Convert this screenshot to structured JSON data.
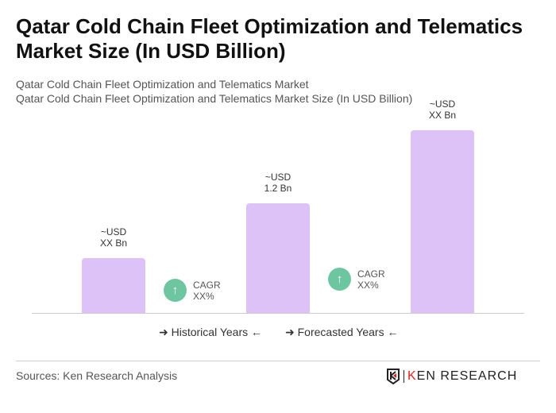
{
  "title": "Qatar Cold Chain Fleet Optimization and Telematics Market Size (In USD Billion)",
  "subtitle1": "Qatar Cold Chain Fleet Optimization and Telematics Market",
  "subtitle2": "Qatar Cold Chain Fleet Optimization and Telematics Market Size (In USD Billion)",
  "chart_data": {
    "type": "bar",
    "categories": [
      "",
      "",
      ""
    ],
    "values": [
      0.6,
      1.2,
      2.0
    ],
    "data_labels": [
      {
        "l1": "~USD",
        "l2": "XX Bn"
      },
      {
        "l1": "~USD",
        "l2": "1.2 Bn"
      },
      {
        "l1": "~USD",
        "l2": "XX Bn"
      }
    ],
    "bar_color": "#dcc2f7",
    "cagr": [
      {
        "label": "CAGR",
        "value": "XX%"
      },
      {
        "label": "CAGR",
        "value": "XX%"
      }
    ],
    "legend": [
      "Historical Years",
      "Forecasted Years"
    ],
    "cagr_color": "#6ec6a0"
  },
  "icons": {
    "cagr": "arrow-up-icon",
    "legend": "arrow-right-left-icons"
  },
  "source": "Sources: Ken Research Analysis",
  "logo": "KEN RESEARCH"
}
